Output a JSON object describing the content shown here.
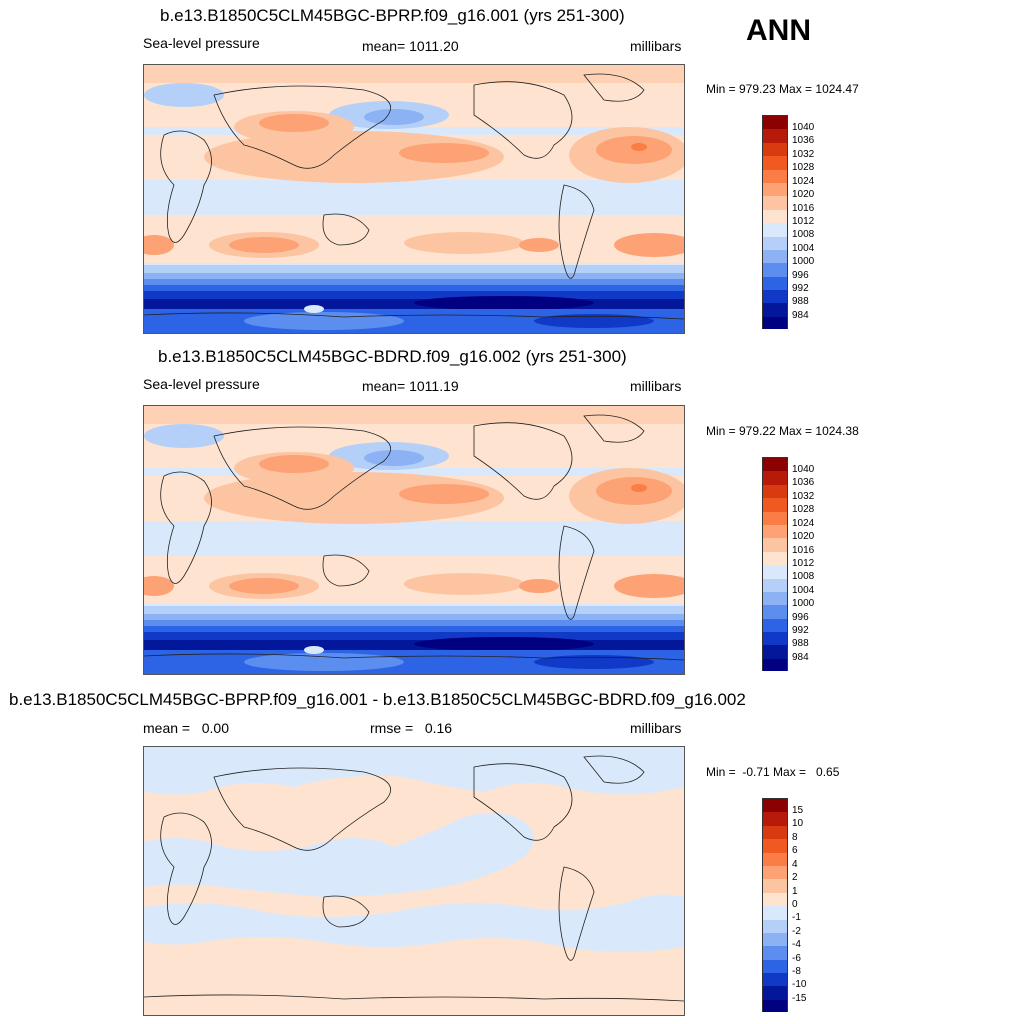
{
  "season": "ANN",
  "panels": [
    {
      "title": "b.e13.B1850C5CLM45BGC-BPRP.f09_g16.001 (yrs 251-300)",
      "left_label": "Sea-level pressure",
      "center_label": "mean= 1011.20",
      "units": "millibars",
      "minmax": "Min = 979.23 Max = 1024.47",
      "colorbar": {
        "labels": [
          "1040",
          "1036",
          "1032",
          "1028",
          "1024",
          "1020",
          "1016",
          "1012",
          "1008",
          "1004",
          "1000",
          "996",
          "992",
          "988",
          "984"
        ],
        "colors": [
          "#8b0000",
          "#b81a0a",
          "#d93a10",
          "#f05a20",
          "#fb7d46",
          "#fca275",
          "#fdc4a2",
          "#fee4d0",
          "#d9e9fb",
          "#b4d0f8",
          "#8db2f3",
          "#5c8ef0",
          "#2d64e6",
          "#1039c8",
          "#03179a",
          "#000080"
        ]
      }
    },
    {
      "title": "b.e13.B1850C5CLM45BGC-BDRD.f09_g16.002 (yrs 251-300)",
      "left_label": "Sea-level pressure",
      "center_label": "mean= 1011.19",
      "units": "millibars",
      "minmax": "Min = 979.22 Max = 1024.38",
      "colorbar": {
        "labels": [
          "1040",
          "1036",
          "1032",
          "1028",
          "1024",
          "1020",
          "1016",
          "1012",
          "1008",
          "1004",
          "1000",
          "996",
          "992",
          "988",
          "984"
        ],
        "colors": [
          "#8b0000",
          "#b81a0a",
          "#d93a10",
          "#f05a20",
          "#fb7d46",
          "#fca275",
          "#fdc4a2",
          "#fee4d0",
          "#d9e9fb",
          "#b4d0f8",
          "#8db2f3",
          "#5c8ef0",
          "#2d64e6",
          "#1039c8",
          "#03179a",
          "#000080"
        ]
      }
    },
    {
      "title": "b.e13.B1850C5CLM45BGC-BPRP.f09_g16.001 - b.e13.B1850C5CLM45BGC-BDRD.f09_g16.002",
      "left_label": "mean =   0.00",
      "center_label": "rmse =   0.16",
      "units": "millibars",
      "minmax": "Min =  -0.71 Max =   0.65",
      "colorbar": {
        "labels": [
          "15",
          "10",
          "8",
          "6",
          "4",
          "2",
          "1",
          "0",
          "-1",
          "-2",
          "-4",
          "-6",
          "-8",
          "-10",
          "-15"
        ],
        "colors": [
          "#8b0000",
          "#b81a0a",
          "#d93a10",
          "#f05a20",
          "#fb7d46",
          "#fca275",
          "#fdc4a2",
          "#fee4d0",
          "#d9e9fb",
          "#b4d0f8",
          "#8db2f3",
          "#5c8ef0",
          "#2d64e6",
          "#1039c8",
          "#03179a",
          "#000080"
        ]
      }
    }
  ]
}
